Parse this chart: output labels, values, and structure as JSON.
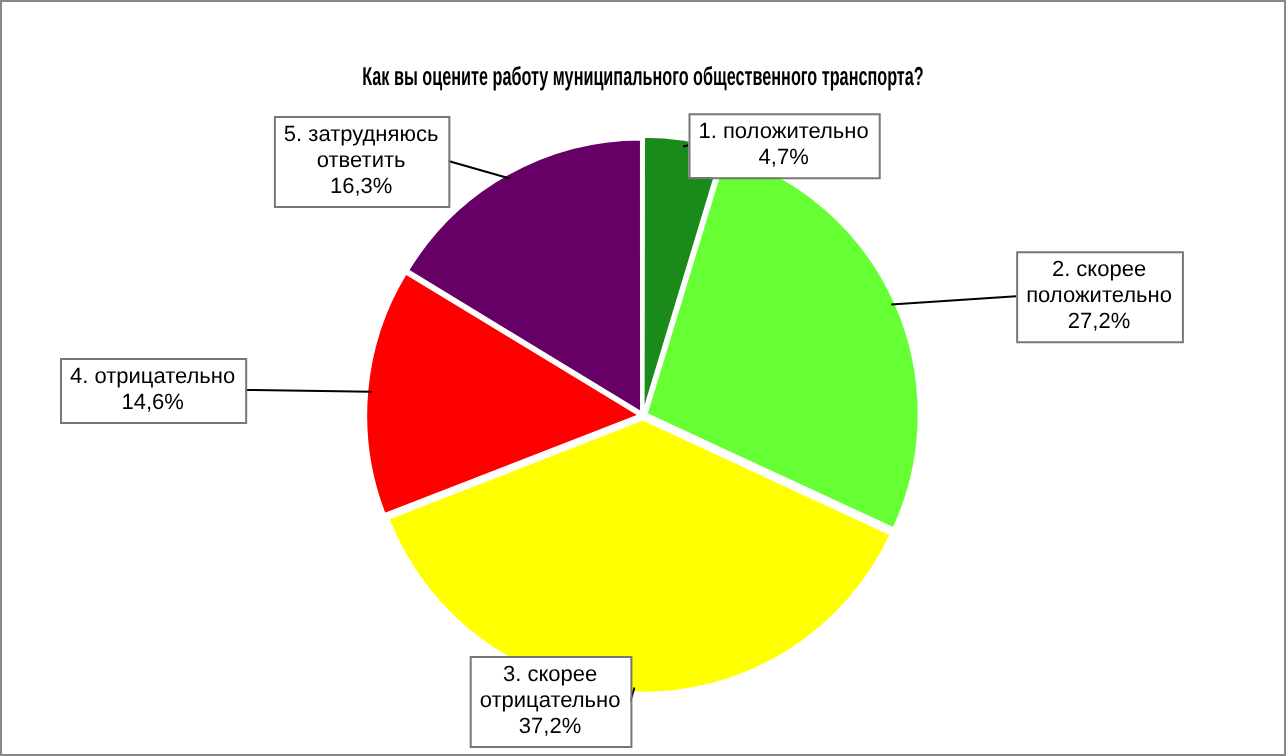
{
  "chart_data": {
    "type": "pie",
    "title": "Как вы оцените работу муниципального общественного транспорта?",
    "categories": [
      "1. положительно",
      "2. скорее положительно",
      "3. скорее отрицательно",
      "4. отрицательно",
      "5. затрудняюсь ответить"
    ],
    "values": [
      4.7,
      27.2,
      37.2,
      14.6,
      16.3
    ],
    "value_labels": [
      "4,7%",
      "27,2%",
      "37,2%",
      "14,6%",
      "16,3%"
    ],
    "colors": [
      "#1a8a1a",
      "#66ff33",
      "#ffff00",
      "#ff0000",
      "#660066"
    ],
    "legend": false
  }
}
